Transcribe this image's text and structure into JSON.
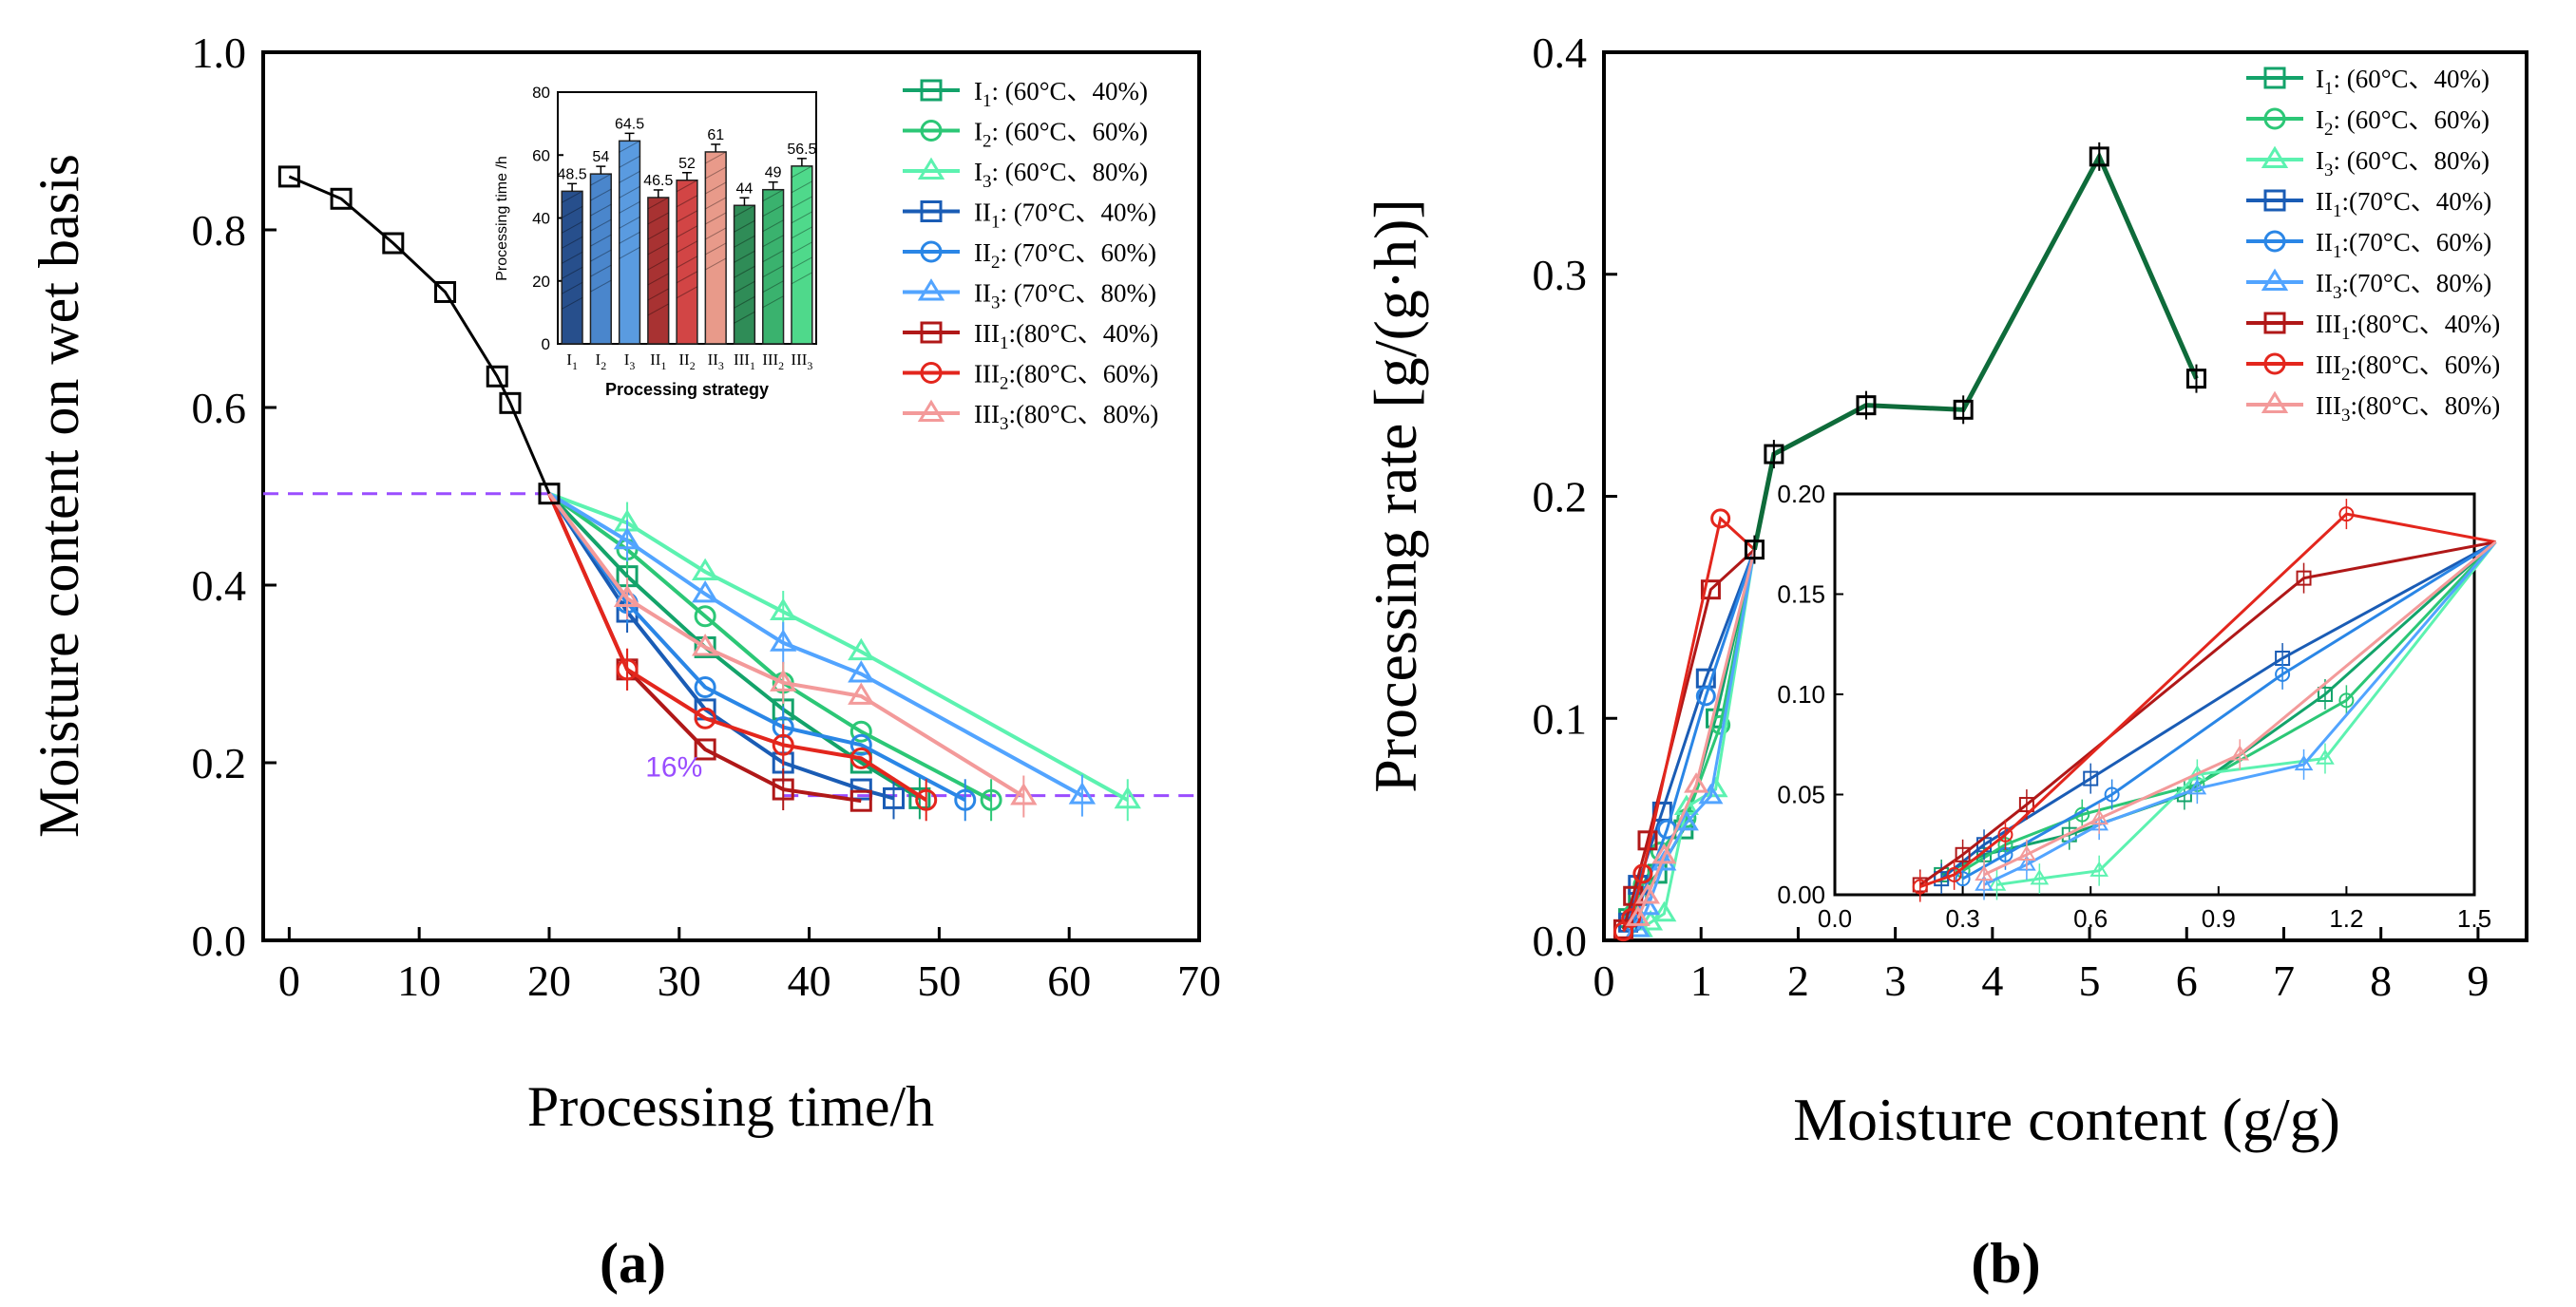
{
  "chart_data": [
    {
      "id": "a",
      "type": "line",
      "panel_label": "(a)",
      "xlabel": "Processing time/h",
      "ylabel": "Moisture content on wet basis",
      "xlim": [
        -2,
        70
      ],
      "ylim": [
        0,
        1.0
      ],
      "xticks": [
        0,
        10,
        20,
        30,
        40,
        50,
        60,
        70
      ],
      "yticks": [
        0.0,
        0.2,
        0.4,
        0.6,
        0.8,
        1.0
      ],
      "ytick_labels": [
        "0.0",
        "0.2",
        "0.4",
        "0.6",
        "0.8",
        "1.0"
      ],
      "common": {
        "x": [
          0,
          4,
          8,
          12,
          16,
          17,
          20
        ],
        "y": [
          0.86,
          0.835,
          0.785,
          0.73,
          0.635,
          0.605,
          0.503
        ],
        "color": "#000000",
        "marker": "square"
      },
      "guides": {
        "top_y": 0.503,
        "top_x": [
          0,
          20
        ],
        "bottom_y": 0.163,
        "bottom_x": [
          38,
          65
        ],
        "color": "#9a4dff",
        "annotation": "16%"
      },
      "series": [
        {
          "name": "I1: (60°C、40%)",
          "color": "#13a36a",
          "marker": "square",
          "x": [
            20,
            26,
            32,
            38,
            44,
            48.5
          ],
          "y": [
            0.503,
            0.41,
            0.33,
            0.26,
            0.2,
            0.16
          ]
        },
        {
          "name": "I2: (60°C、60%)",
          "color": "#2cc776",
          "marker": "circle",
          "x": [
            20,
            26,
            32,
            38,
            44,
            54
          ],
          "y": [
            0.503,
            0.44,
            0.365,
            0.29,
            0.235,
            0.158
          ]
        },
        {
          "name": "I3: (60°C、80%)",
          "color": "#5cf2b0",
          "marker": "triangle",
          "x": [
            20,
            26,
            32,
            38,
            44,
            64.5
          ],
          "y": [
            0.503,
            0.47,
            0.415,
            0.37,
            0.325,
            0.158
          ]
        },
        {
          "name": "II1: (70°C、40%)",
          "color": "#1a5cb5",
          "marker": "square",
          "x": [
            20,
            26,
            32,
            38,
            44,
            46.5
          ],
          "y": [
            0.503,
            0.37,
            0.26,
            0.2,
            0.17,
            0.16
          ]
        },
        {
          "name": "II2: (70°C、60%)",
          "color": "#2a86e6",
          "marker": "circle",
          "x": [
            20,
            26,
            32,
            38,
            44,
            52
          ],
          "y": [
            0.503,
            0.38,
            0.285,
            0.24,
            0.22,
            0.158
          ]
        },
        {
          "name": "II3: (70°C、80%)",
          "color": "#52a4ff",
          "marker": "triangle",
          "x": [
            20,
            26,
            32,
            38,
            44,
            61
          ],
          "y": [
            0.503,
            0.45,
            0.39,
            0.335,
            0.3,
            0.163
          ]
        },
        {
          "name": "III1:(80°C、40%)",
          "color": "#b01818",
          "marker": "square",
          "x": [
            20,
            26,
            32,
            38,
            44
          ],
          "y": [
            0.503,
            0.305,
            0.215,
            0.17,
            0.157
          ]
        },
        {
          "name": "III2:(80°C、60%)",
          "color": "#e3261d",
          "marker": "circle",
          "x": [
            20,
            26,
            32,
            38,
            44,
            49
          ],
          "y": [
            0.503,
            0.305,
            0.25,
            0.22,
            0.205,
            0.158
          ]
        },
        {
          "name": "III3:(80°C、80%)",
          "color": "#f39a9a",
          "marker": "triangle",
          "x": [
            20,
            26,
            32,
            38,
            44,
            56.5
          ],
          "y": [
            0.503,
            0.385,
            0.33,
            0.29,
            0.275,
            0.162
          ]
        }
      ],
      "inset": {
        "type": "bar",
        "xlabel": "Processing strategy",
        "ylabel": "Processing time /h",
        "ylim": [
          0,
          80
        ],
        "yticks": [
          0,
          20,
          40,
          60,
          80
        ],
        "ytick_labels": [
          "0",
          "20",
          "40",
          "60",
          "80"
        ],
        "categories": [
          "I1",
          "I2",
          "I3",
          "II1",
          "II2",
          "II3",
          "III1",
          "III2",
          "III3"
        ],
        "values": [
          48.5,
          54,
          64.5,
          46.5,
          52,
          61,
          44,
          49,
          56.5
        ],
        "value_labels": [
          "48.5",
          "54",
          "64.5",
          "46.5",
          "52",
          "61",
          "44",
          "49",
          "56.5"
        ],
        "colors": [
          "#274f8c",
          "#4a86cc",
          "#5a9be0",
          "#a83232",
          "#d24545",
          "#e89a8a",
          "#2f8c57",
          "#3ab26e",
          "#4fd98b"
        ]
      }
    },
    {
      "id": "b",
      "type": "line",
      "panel_label": "(b)",
      "xlabel": "Moisture content (g/g)",
      "ylabel": "Processing rate [g/(g·h)]",
      "xlim": [
        0,
        9.5
      ],
      "ylim": [
        0,
        0.4
      ],
      "xticks": [
        0,
        1,
        2,
        3,
        4,
        5,
        6,
        7,
        8,
        9
      ],
      "yticks": [
        0.0,
        0.1,
        0.2,
        0.3,
        0.4
      ],
      "ytick_labels": [
        "0.0",
        "0.1",
        "0.2",
        "0.3",
        "0.4"
      ],
      "common": {
        "x": [
          6.1,
          5.1,
          3.7,
          2.7,
          1.75,
          1.55
        ],
        "y": [
          0.253,
          0.353,
          0.239,
          0.241,
          0.219,
          0.176
        ],
        "color": "#000000",
        "line_color": "#0e6b3a",
        "marker": "square"
      },
      "series": [
        {
          "name": "I1: (60°C、40%)",
          "color": "#13a36a",
          "marker": "square",
          "x": [
            1.55,
            1.15,
            0.82,
            0.55,
            0.35,
            0.25
          ],
          "y": [
            0.176,
            0.1,
            0.05,
            0.03,
            0.02,
            0.01
          ]
        },
        {
          "name": "I2: (60°C、60%)",
          "color": "#2cc776",
          "marker": "circle",
          "x": [
            1.55,
            1.2,
            0.85,
            0.58,
            0.4,
            0.3
          ],
          "y": [
            0.176,
            0.097,
            0.055,
            0.04,
            0.025,
            0.012
          ]
        },
        {
          "name": "I3: (60°C、80%)",
          "color": "#5cf2b0",
          "marker": "triangle",
          "x": [
            1.55,
            1.15,
            0.85,
            0.62,
            0.48,
            0.38
          ],
          "y": [
            0.176,
            0.068,
            0.06,
            0.012,
            0.008,
            0.005
          ]
        },
        {
          "name": "II1:(70°C、40%)",
          "color": "#1a5cb5",
          "marker": "square",
          "x": [
            1.55,
            1.05,
            0.6,
            0.35,
            0.25
          ],
          "y": [
            0.176,
            0.118,
            0.058,
            0.025,
            0.008
          ]
        },
        {
          "name": "II1:(70°C、60%)",
          "color": "#2a86e6",
          "marker": "circle",
          "x": [
            1.55,
            1.05,
            0.65,
            0.4,
            0.3
          ],
          "y": [
            0.176,
            0.11,
            0.05,
            0.02,
            0.008
          ]
        },
        {
          "name": "II3:(70°C、80%)",
          "color": "#52a4ff",
          "marker": "triangle",
          "x": [
            1.55,
            1.1,
            0.85,
            0.62,
            0.45,
            0.35
          ],
          "y": [
            0.176,
            0.065,
            0.053,
            0.035,
            0.015,
            0.005
          ]
        },
        {
          "name": "III1:(80°C、40%)",
          "color": "#b01818",
          "marker": "square",
          "x": [
            1.55,
            1.1,
            0.45,
            0.3,
            0.2
          ],
          "y": [
            0.176,
            0.158,
            0.045,
            0.02,
            0.005
          ]
        },
        {
          "name": "III2:(80°C、60%)",
          "color": "#e3261d",
          "marker": "circle",
          "x": [
            1.55,
            1.2,
            0.4,
            0.28,
            0.2
          ],
          "y": [
            0.176,
            0.19,
            0.03,
            0.01,
            0.004
          ]
        },
        {
          "name": "III3:(80°C、80%)",
          "color": "#f39a9a",
          "marker": "triangle",
          "x": [
            1.55,
            0.95,
            0.62,
            0.45,
            0.35
          ],
          "y": [
            0.176,
            0.07,
            0.038,
            0.02,
            0.01
          ]
        }
      ],
      "inset": {
        "xlim": [
          0.0,
          1.5
        ],
        "ylim": [
          0.0,
          0.2
        ],
        "xticks": [
          0.0,
          0.3,
          0.6,
          0.9,
          1.2,
          1.5
        ],
        "xtick_labels": [
          "0.0",
          "0.3",
          "0.6",
          "0.9",
          "1.2",
          "1.5"
        ],
        "yticks": [
          0.0,
          0.05,
          0.1,
          0.15,
          0.2
        ],
        "ytick_labels": [
          "0.00",
          "0.05",
          "0.10",
          "0.15",
          "0.20"
        ]
      }
    }
  ]
}
